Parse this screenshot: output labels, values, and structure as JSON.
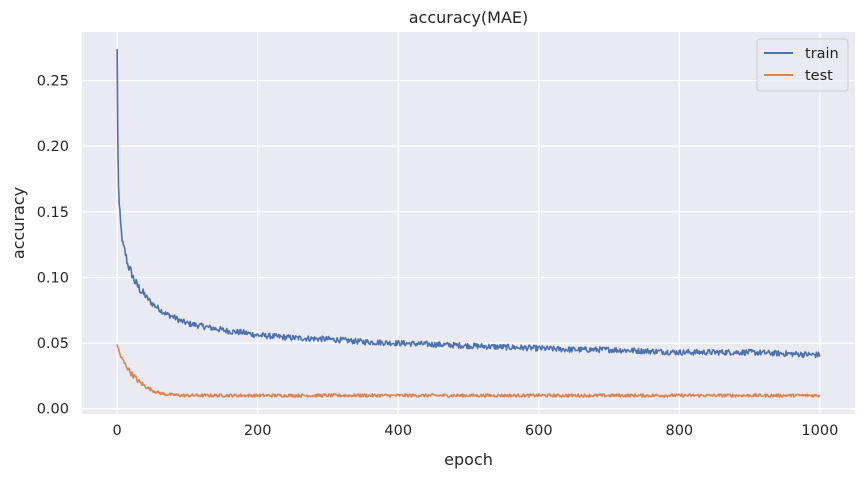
{
  "chart_data": {
    "type": "line",
    "title": "accuracy(MAE)",
    "xlabel": "epoch",
    "ylabel": "accuracy",
    "xlim": [
      -50,
      1050
    ],
    "ylim": [
      -0.004,
      0.287
    ],
    "xticks": [
      0,
      200,
      400,
      600,
      800,
      1000
    ],
    "xtick_labels": [
      "0",
      "200",
      "400",
      "600",
      "800",
      "1000"
    ],
    "yticks": [
      0.0,
      0.05,
      0.1,
      0.15,
      0.2,
      0.25
    ],
    "ytick_labels": [
      "0.00",
      "0.05",
      "0.10",
      "0.15",
      "0.20",
      "0.25"
    ],
    "grid": true,
    "legend_position": "top-right",
    "series": [
      {
        "name": "train",
        "color": "#4c72b0",
        "x": [
          0,
          1,
          2,
          3,
          5,
          8,
          12,
          15,
          20,
          25,
          30,
          35,
          40,
          50,
          60,
          70,
          80,
          90,
          100,
          120,
          140,
          160,
          180,
          200,
          250,
          300,
          350,
          400,
          450,
          500,
          550,
          600,
          650,
          700,
          750,
          800,
          850,
          900,
          950,
          1000
        ],
        "values": [
          0.274,
          0.2,
          0.17,
          0.155,
          0.14,
          0.125,
          0.118,
          0.11,
          0.104,
          0.097,
          0.093,
          0.089,
          0.086,
          0.08,
          0.076,
          0.072,
          0.07,
          0.067,
          0.065,
          0.063,
          0.061,
          0.059,
          0.058,
          0.056,
          0.054,
          0.053,
          0.051,
          0.05,
          0.049,
          0.048,
          0.047,
          0.046,
          0.045,
          0.045,
          0.044,
          0.043,
          0.043,
          0.043,
          0.042,
          0.041
        ],
        "noise": 0.0022
      },
      {
        "name": "test",
        "color": "#dd8452",
        "x": [
          0,
          2,
          5,
          10,
          15,
          20,
          25,
          30,
          35,
          40,
          50,
          60,
          70,
          80,
          90,
          100,
          150,
          200,
          300,
          400,
          500,
          600,
          700,
          800,
          900,
          1000
        ],
        "values": [
          0.049,
          0.045,
          0.04,
          0.035,
          0.031,
          0.027,
          0.024,
          0.021,
          0.019,
          0.017,
          0.014,
          0.012,
          0.011,
          0.0105,
          0.0102,
          0.0101,
          0.0101,
          0.0101,
          0.0101,
          0.0101,
          0.0101,
          0.0101,
          0.0101,
          0.0101,
          0.0101,
          0.0101
        ],
        "noise": 0.0012
      }
    ]
  }
}
